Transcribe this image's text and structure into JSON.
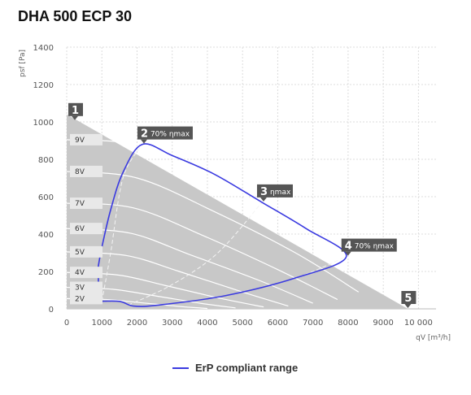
{
  "title": "DHA 500 ECP 30",
  "chart_data": {
    "type": "line",
    "xlabel": "qV [m³/h]",
    "ylabel": "psf [Pa]",
    "xlim": [
      0,
      10500
    ],
    "ylim": [
      0,
      1400
    ],
    "x_ticks": [
      0,
      1000,
      2000,
      3000,
      4000,
      5000,
      6000,
      7000,
      8000,
      9000,
      10000
    ],
    "x_tick_labels": [
      "0",
      "1000",
      "2000",
      "3000",
      "4000",
      "5000",
      "6000",
      "7000",
      "8000",
      "9000",
      "10 000"
    ],
    "y_ticks": [
      0,
      200,
      400,
      600,
      800,
      1000,
      1200,
      1400
    ],
    "y_tick_labels": [
      "0",
      "200",
      "400",
      "600",
      "800",
      "1000",
      "1200",
      "1400"
    ],
    "grid": true,
    "voltage_curves": [
      {
        "name": "9V",
        "label_y": 905,
        "points": [
          [
            0,
            905
          ],
          [
            2150,
            870
          ],
          [
            4500,
            660
          ],
          [
            7000,
            400
          ],
          [
            9000,
            140
          ]
        ]
      },
      {
        "name": "8V",
        "label_y": 735,
        "points": [
          [
            0,
            735
          ],
          [
            2000,
            700
          ],
          [
            4200,
            520
          ],
          [
            6500,
            300
          ],
          [
            8300,
            90
          ]
        ]
      },
      {
        "name": "7V",
        "label_y": 565,
        "points": [
          [
            0,
            565
          ],
          [
            1900,
            540
          ],
          [
            3900,
            390
          ],
          [
            6000,
            210
          ],
          [
            7700,
            50
          ]
        ]
      },
      {
        "name": "6V",
        "label_y": 430,
        "points": [
          [
            0,
            430
          ],
          [
            1800,
            405
          ],
          [
            3500,
            290
          ],
          [
            5500,
            150
          ],
          [
            7000,
            30
          ]
        ]
      },
      {
        "name": "5V",
        "label_y": 305,
        "points": [
          [
            0,
            305
          ],
          [
            1700,
            285
          ],
          [
            3200,
            200
          ],
          [
            5000,
            90
          ],
          [
            6300,
            15
          ]
        ]
      },
      {
        "name": "4V",
        "label_y": 195,
        "points": [
          [
            0,
            195
          ],
          [
            1500,
            180
          ],
          [
            2800,
            125
          ],
          [
            4400,
            55
          ],
          [
            5600,
            10
          ]
        ]
      },
      {
        "name": "3V",
        "label_y": 115,
        "points": [
          [
            0,
            115
          ],
          [
            1300,
            105
          ],
          [
            2500,
            70
          ],
          [
            3800,
            30
          ],
          [
            4800,
            5
          ]
        ]
      },
      {
        "name": "2V",
        "label_y": 55,
        "points": [
          [
            0,
            55
          ],
          [
            1100,
            50
          ],
          [
            2100,
            33
          ],
          [
            3200,
            13
          ],
          [
            4000,
            2
          ]
        ]
      }
    ],
    "envelope": [
      [
        0,
        1040
      ],
      [
        9700,
        0
      ],
      [
        0,
        0
      ]
    ],
    "operating_points": [
      {
        "num": "1",
        "text": "",
        "x": 0,
        "y": 1040
      },
      {
        "num": "2",
        "text": "70% ηmax",
        "x": 2150,
        "y": 880
      },
      {
        "num": "3",
        "text": "ηmax",
        "x": 5550,
        "y": 570
      },
      {
        "num": "4",
        "text": "70% ηmax",
        "x": 7950,
        "y": 280
      },
      {
        "num": "5",
        "text": "",
        "x": 9700,
        "y": 0
      }
    ],
    "efficiency_lines": [
      {
        "name": "70% ηmax left",
        "points": [
          [
            1000,
            40
          ],
          [
            1250,
            300
          ],
          [
            1600,
            700
          ],
          [
            2150,
            880
          ]
        ]
      },
      {
        "name": "ηmax",
        "points": [
          [
            1750,
            20
          ],
          [
            3000,
            130
          ],
          [
            4300,
            300
          ],
          [
            5550,
            570
          ]
        ]
      },
      {
        "name": "70% ηmax right",
        "points": [
          [
            2600,
            20
          ],
          [
            4500,
            70
          ],
          [
            6500,
            165
          ],
          [
            7950,
            280
          ]
        ]
      }
    ],
    "series": [
      {
        "name": "ErP compliant range",
        "color": "#3a3ae0",
        "points": [
          [
            900,
            230
          ],
          [
            1000,
            330
          ],
          [
            1250,
            530
          ],
          [
            1600,
            730
          ],
          [
            2150,
            880
          ],
          [
            3000,
            820
          ],
          [
            4200,
            720
          ],
          [
            5550,
            570
          ],
          [
            6800,
            430
          ],
          [
            7950,
            280
          ],
          [
            6500,
            165
          ],
          [
            4500,
            70
          ],
          [
            2600,
            20
          ],
          [
            1900,
            15
          ],
          [
            1500,
            40
          ],
          [
            900,
            40
          ]
        ]
      }
    ]
  },
  "legend": {
    "label": "ErP compliant range"
  }
}
